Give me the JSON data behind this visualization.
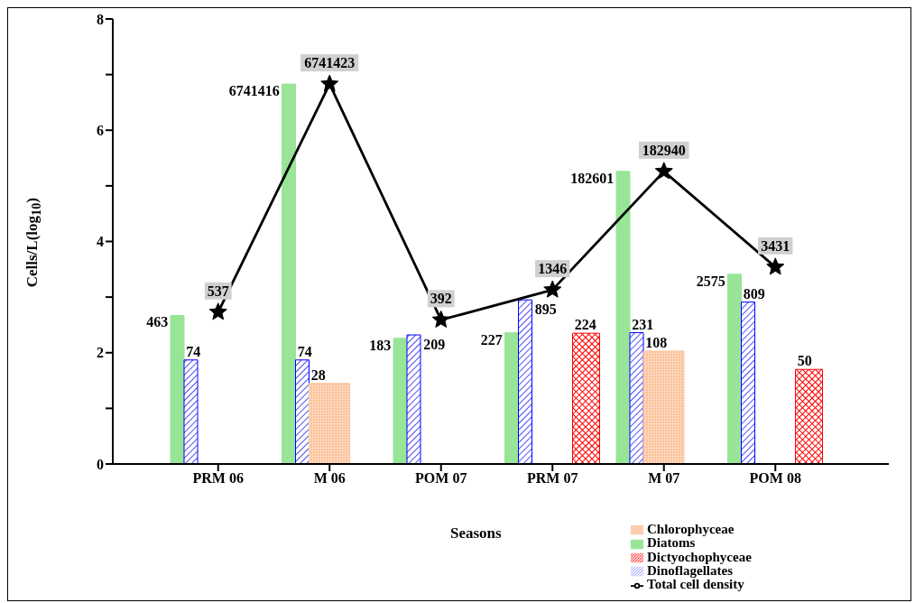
{
  "chart_data": {
    "type": "bar",
    "xlabel": "Seasons",
    "ylabel": "Cells/L(log$_{10}$)",
    "categories": [
      "PRM 06",
      "M 06",
      "POM 07",
      "PRM 07",
      "M 07",
      "POM 08"
    ],
    "ylim": [
      0,
      8
    ],
    "yticks": [
      0,
      {
        "value": 1,
        "label": null
      },
      2,
      {
        "value": 3,
        "label": null
      },
      4,
      {
        "value": 5,
        "label": null
      },
      6,
      {
        "value": 7,
        "label": null
      },
      8
    ],
    "legend": "bottom right",
    "series": [
      {
        "name": "Diatoms",
        "color": "#98e598",
        "values": [
          2.67,
          6.83,
          2.26,
          2.36,
          5.26,
          3.41
        ]
      },
      {
        "name": "Dinoflagellates",
        "color": "#0000ff",
        "values": [
          1.87,
          1.87,
          2.32,
          2.95,
          2.36,
          2.91
        ]
      },
      {
        "name": "Chlorophyceae",
        "color": "#fcc8a4",
        "values": [
          null,
          1.45,
          null,
          null,
          2.03,
          null
        ]
      },
      {
        "name": "Dictyochophyceae",
        "color": "#ff0000",
        "values": [
          null,
          null,
          null,
          2.35,
          null,
          1.7
        ]
      },
      {
        "name": "Total cell density",
        "type": "line",
        "color": "#000000",
        "marker": "star",
        "values": [
          2.73,
          6.83,
          2.59,
          3.13,
          5.26,
          3.54
        ]
      }
    ],
    "annotations": [
      "463",
      "6741416",
      "183",
      "227",
      "182601",
      "2575",
      "74",
      "74",
      "209",
      "895",
      "231",
      "809",
      "28",
      "108",
      "224",
      "50",
      "537",
      "6741423",
      "392",
      "1346",
      "182940",
      "3431"
    ]
  }
}
